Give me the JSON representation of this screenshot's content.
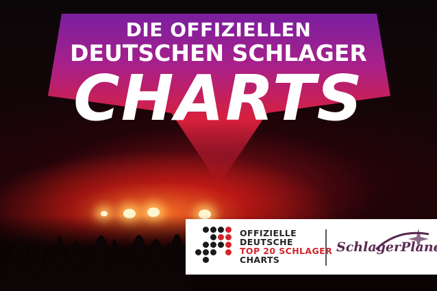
{
  "headline": {
    "line1": "DIE OFFIZIELLEN",
    "line2": "DEUTSCHEN SCHLAGER",
    "line3": "CHARTS"
  },
  "logo": {
    "line1": "OFFIZIELLE",
    "line2": "DEUTSCHE",
    "line3": "TOP 20 SCHLAGER",
    "line4": "CHARTS",
    "dot_colors": {
      "black": "#1a1a1a",
      "red": "#d4232b"
    }
  },
  "partner": {
    "name": "SchlagerPlanet"
  },
  "colors": {
    "banner_top": "#7a1fa0",
    "banner_bottom": "#d8203c",
    "accent_red": "#d4232b"
  }
}
